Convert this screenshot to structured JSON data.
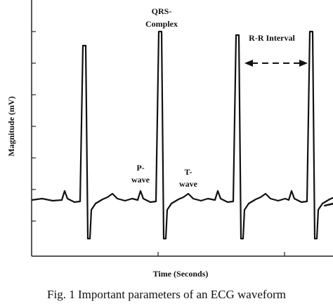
{
  "figure": {
    "annotations": {
      "qrs": [
        "QRS-",
        "Complex"
      ],
      "rr": "R-R Interval",
      "p": [
        "P-",
        "wave"
      ],
      "t": [
        "T-",
        "wave"
      ]
    },
    "y_label": "Magnitude (mV)",
    "x_label": "Time (Seconds)",
    "caption": "Fig. 1 Important parameters of an ECG waveform"
  }
}
